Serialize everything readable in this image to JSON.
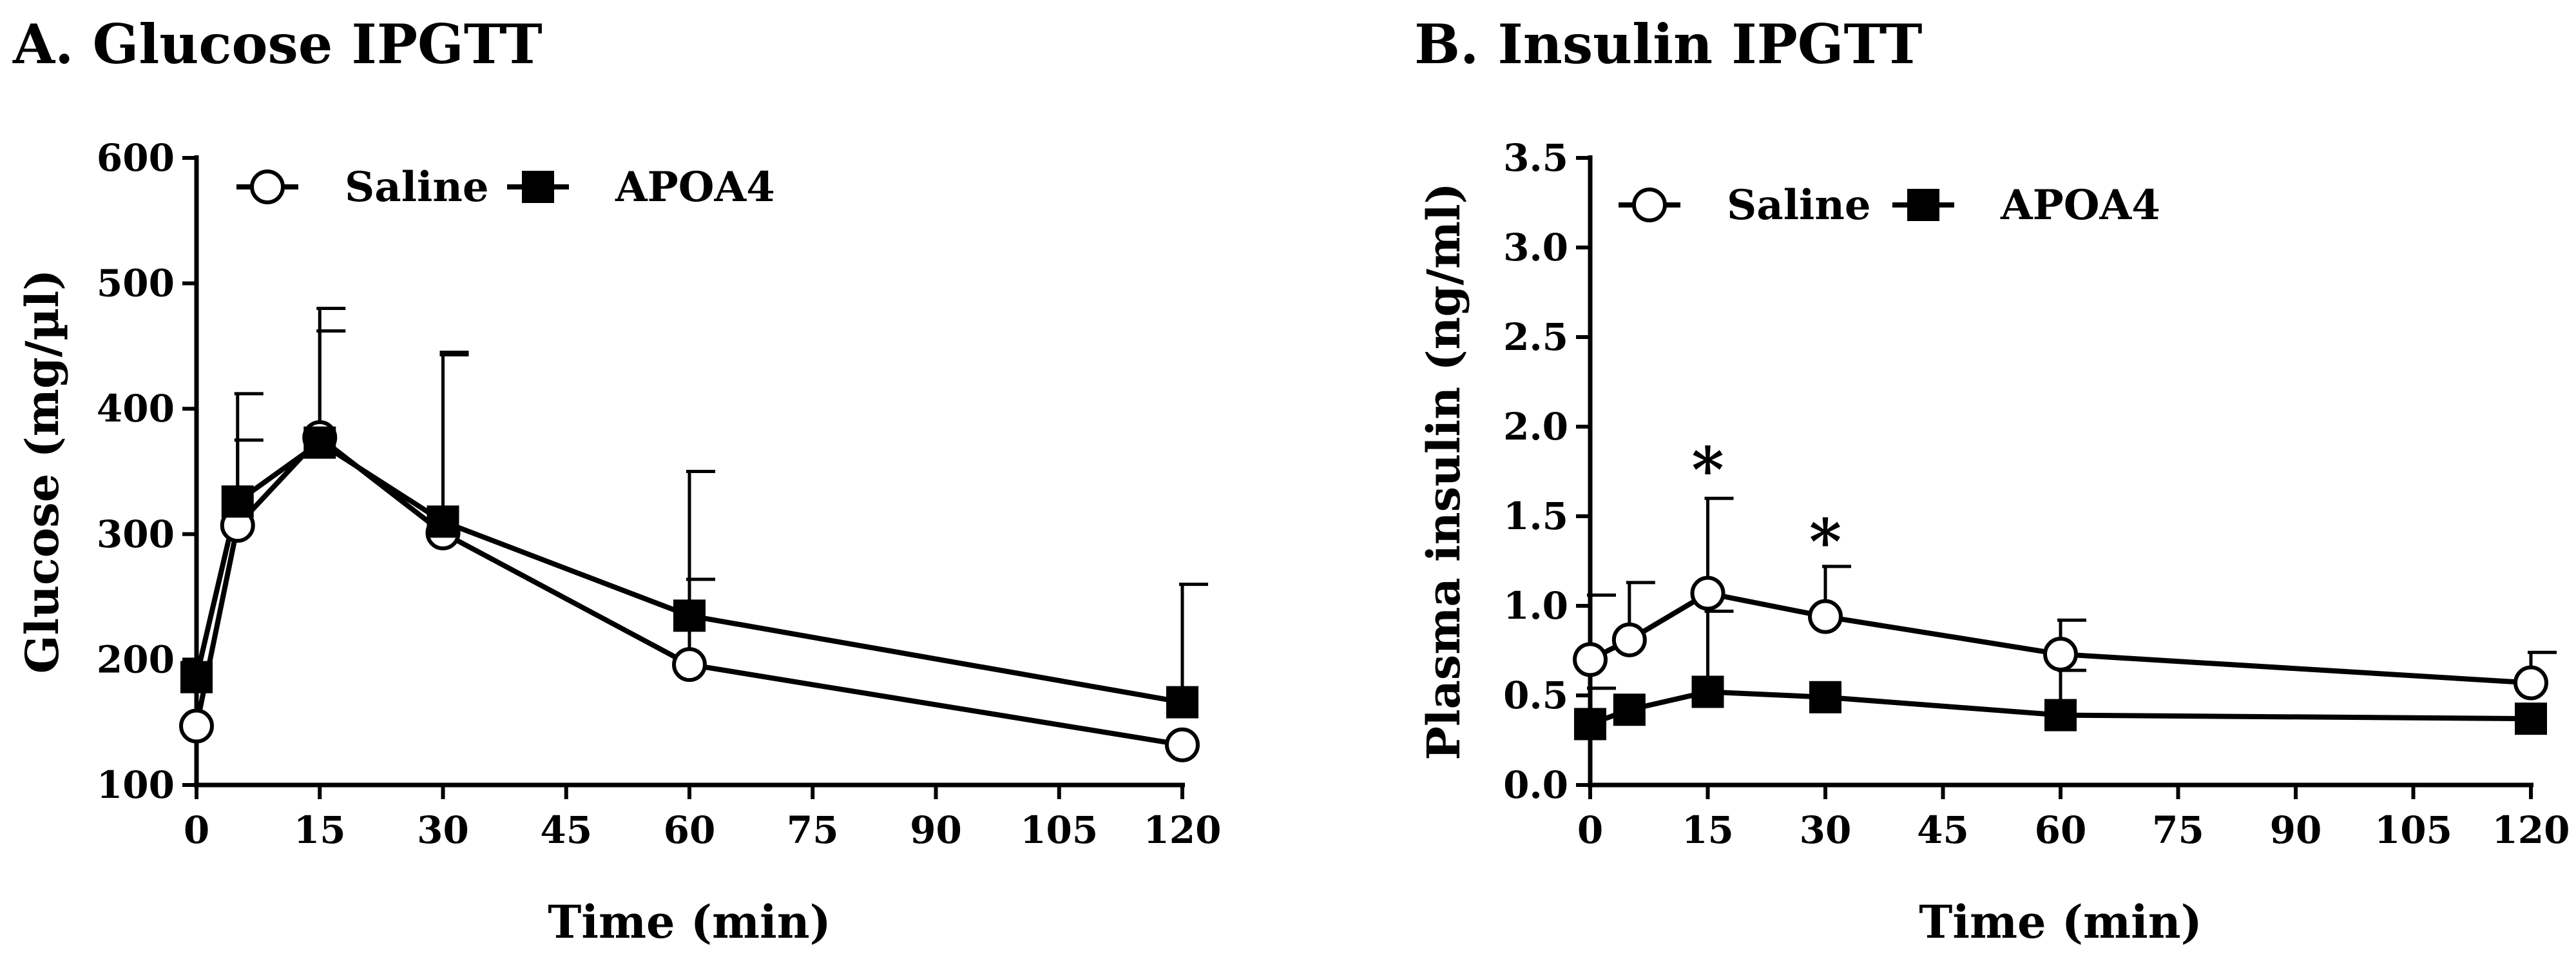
{
  "chart_data": [
    {
      "type": "line",
      "title": "A. Glucose IPGTT",
      "xlabel": "Time (min)",
      "ylabel": "Glucose (mg/µl)",
      "xlim": [
        0,
        120
      ],
      "ylim": [
        100,
        600
      ],
      "xticks": [
        0,
        15,
        30,
        45,
        60,
        75,
        90,
        105,
        120
      ],
      "yticks": [
        100,
        200,
        300,
        400,
        500,
        600
      ],
      "x": [
        0,
        5,
        15,
        30,
        60,
        120
      ],
      "series": [
        {
          "name": "Saline",
          "marker": "open-circle",
          "values": [
            147,
            307,
            377,
            301,
            196,
            132
          ],
          "errors_up": [
            null,
            375,
            462,
            443,
            264,
            null
          ]
        },
        {
          "name": "APOA4",
          "marker": "filled-square",
          "values": [
            186,
            326,
            373,
            310,
            235,
            166
          ],
          "errors_up": [
            null,
            412,
            480,
            445,
            350,
            260
          ]
        }
      ],
      "legend": "top-left",
      "annotations": []
    },
    {
      "type": "line",
      "title": "B. Insulin IPGTT",
      "xlabel": "Time (min)",
      "ylabel": "Plasma insulin (ng/ml)",
      "xlim": [
        0,
        120
      ],
      "ylim": [
        0,
        3.5
      ],
      "xticks": [
        0,
        15,
        30,
        45,
        60,
        75,
        90,
        105,
        120
      ],
      "yticks": [
        0.0,
        0.5,
        1.0,
        1.5,
        2.0,
        2.5,
        3.0,
        3.5
      ],
      "x": [
        0,
        5,
        15,
        30,
        60,
        120
      ],
      "series": [
        {
          "name": "Saline",
          "marker": "open-circle",
          "values": [
            0.7,
            0.81,
            1.07,
            0.94,
            0.73,
            0.57
          ],
          "errors_up": [
            1.06,
            1.13,
            1.6,
            1.22,
            0.92,
            0.74
          ]
        },
        {
          "name": "APOA4",
          "marker": "filled-square",
          "values": [
            0.34,
            0.42,
            0.52,
            0.49,
            0.39,
            0.37
          ],
          "errors_up": [
            0.54,
            null,
            0.97,
            null,
            0.64,
            null
          ]
        }
      ],
      "legend": "top-left",
      "annotations": [
        {
          "text": "*",
          "x": 15,
          "y": 1.78
        },
        {
          "text": "*",
          "x": 30,
          "y": 1.38
        }
      ]
    }
  ]
}
